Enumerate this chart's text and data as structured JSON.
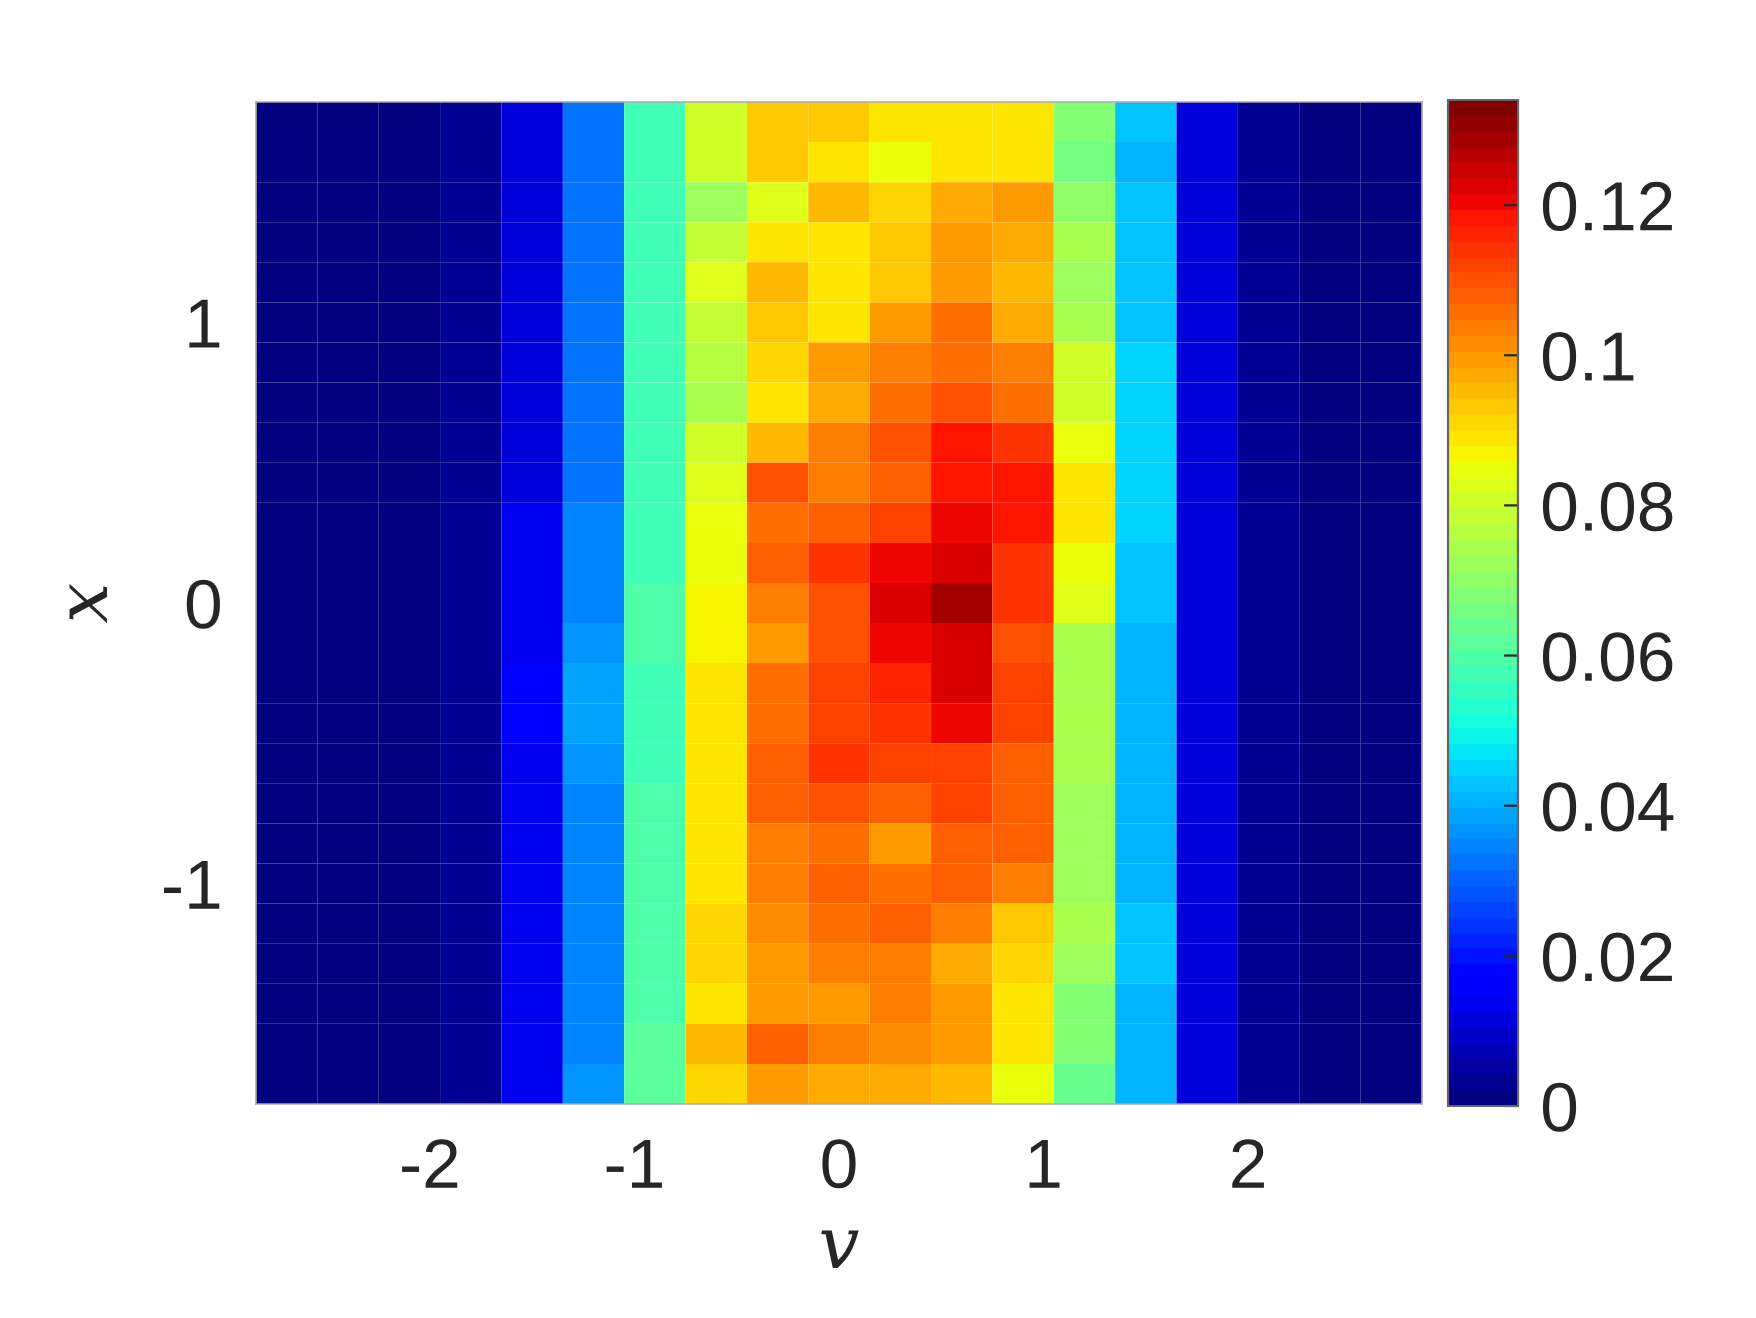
{
  "chart_data": {
    "type": "heatmap",
    "xlabel": "v",
    "ylabel": "x",
    "x": [
      -2.7,
      -2.4,
      -2.1,
      -1.8,
      -1.5,
      -1.2,
      -0.9,
      -0.6,
      -0.3,
      0,
      0.3,
      0.6,
      0.9,
      1.2,
      1.5,
      1.8,
      2.1,
      2.4,
      2.7
    ],
    "y_categories": [
      null,
      null,
      null,
      null,
      null,
      "1",
      null,
      null,
      null,
      null,
      null,
      null,
      "0",
      null,
      null,
      null,
      null,
      null,
      null,
      "-1",
      null,
      null,
      null,
      null,
      null
    ],
    "cells": [
      [
        0,
        0,
        0.001,
        0.004,
        0.012,
        0.032,
        0.057,
        0.08,
        0.093,
        0.093,
        0.088,
        0.09,
        0.09,
        0.068,
        0.042,
        0.012,
        0.003,
        0.001,
        0
      ],
      [
        0,
        0,
        0.001,
        0.004,
        0.012,
        0.032,
        0.057,
        0.08,
        0.093,
        0.088,
        0.085,
        0.09,
        0.088,
        0.065,
        0.04,
        0.012,
        0.003,
        0.001,
        0
      ],
      [
        0,
        0,
        0.001,
        0.004,
        0.012,
        0.032,
        0.057,
        0.072,
        0.083,
        0.095,
        0.092,
        0.097,
        0.1,
        0.07,
        0.042,
        0.012,
        0.003,
        0.001,
        0
      ],
      [
        0,
        0,
        0.001,
        0.004,
        0.012,
        0.032,
        0.057,
        0.078,
        0.09,
        0.088,
        0.093,
        0.1,
        0.098,
        0.075,
        0.042,
        0.012,
        0.003,
        0.001,
        0
      ],
      [
        0,
        0,
        0.001,
        0.004,
        0.012,
        0.032,
        0.057,
        0.082,
        0.095,
        0.088,
        0.093,
        0.1,
        0.095,
        0.072,
        0.042,
        0.012,
        0.003,
        0.001,
        0
      ],
      [
        0,
        0,
        0.001,
        0.004,
        0.012,
        0.032,
        0.057,
        0.078,
        0.093,
        0.09,
        0.1,
        0.105,
        0.098,
        0.075,
        0.042,
        0.012,
        0.003,
        0.001,
        0
      ],
      [
        0,
        0,
        0.001,
        0.004,
        0.012,
        0.033,
        0.057,
        0.077,
        0.092,
        0.1,
        0.103,
        0.105,
        0.103,
        0.08,
        0.044,
        0.012,
        0.003,
        0.001,
        0
      ],
      [
        0,
        0,
        0.001,
        0.004,
        0.012,
        0.033,
        0.057,
        0.075,
        0.088,
        0.098,
        0.105,
        0.11,
        0.105,
        0.08,
        0.044,
        0.012,
        0.003,
        0.001,
        0
      ],
      [
        0,
        0,
        0.001,
        0.004,
        0.012,
        0.033,
        0.058,
        0.08,
        0.095,
        0.103,
        0.11,
        0.118,
        0.115,
        0.085,
        0.044,
        0.012,
        0.003,
        0.001,
        0
      ],
      [
        0,
        0,
        0.001,
        0.004,
        0.012,
        0.033,
        0.058,
        0.083,
        0.11,
        0.103,
        0.108,
        0.118,
        0.118,
        0.088,
        0.044,
        0.012,
        0.003,
        0.001,
        0
      ],
      [
        0,
        0,
        0.001,
        0.004,
        0.013,
        0.034,
        0.058,
        0.085,
        0.105,
        0.107,
        0.112,
        0.12,
        0.118,
        0.088,
        0.044,
        0.012,
        0.003,
        0.001,
        0
      ],
      [
        0,
        0,
        0.001,
        0.004,
        0.013,
        0.035,
        0.058,
        0.084,
        0.108,
        0.115,
        0.12,
        0.123,
        0.115,
        0.085,
        0.043,
        0.012,
        0.003,
        0.001,
        0
      ],
      [
        0,
        0,
        0.001,
        0.004,
        0.013,
        0.035,
        0.06,
        0.086,
        0.103,
        0.11,
        0.122,
        0.128,
        0.115,
        0.082,
        0.042,
        0.012,
        0.003,
        0.001,
        0
      ],
      [
        0,
        0,
        0.001,
        0.004,
        0.014,
        0.036,
        0.06,
        0.086,
        0.1,
        0.11,
        0.12,
        0.122,
        0.11,
        0.075,
        0.04,
        0.012,
        0.003,
        0.001,
        0
      ],
      [
        0,
        0,
        0.001,
        0.004,
        0.015,
        0.038,
        0.058,
        0.09,
        0.105,
        0.113,
        0.117,
        0.122,
        0.113,
        0.075,
        0.04,
        0.012,
        0.003,
        0.001,
        0
      ],
      [
        0,
        0,
        0.001,
        0.004,
        0.015,
        0.038,
        0.057,
        0.088,
        0.106,
        0.113,
        0.115,
        0.12,
        0.113,
        0.075,
        0.04,
        0.012,
        0.003,
        0.001,
        0
      ],
      [
        0,
        0,
        0.001,
        0.004,
        0.014,
        0.036,
        0.058,
        0.09,
        0.108,
        0.115,
        0.112,
        0.113,
        0.108,
        0.075,
        0.04,
        0.012,
        0.003,
        0.001,
        0
      ],
      [
        0,
        0,
        0.001,
        0.004,
        0.013,
        0.035,
        0.059,
        0.09,
        0.107,
        0.11,
        0.107,
        0.112,
        0.107,
        0.072,
        0.04,
        0.012,
        0.003,
        0.001,
        0
      ],
      [
        0,
        0,
        0.001,
        0.004,
        0.013,
        0.034,
        0.059,
        0.09,
        0.103,
        0.105,
        0.1,
        0.108,
        0.108,
        0.072,
        0.04,
        0.012,
        0.003,
        0.001,
        0
      ],
      [
        0,
        0,
        0.001,
        0.004,
        0.013,
        0.034,
        0.059,
        0.09,
        0.103,
        0.107,
        0.105,
        0.107,
        0.103,
        0.073,
        0.041,
        0.012,
        0.003,
        0.001,
        0
      ],
      [
        0,
        0,
        0.001,
        0.004,
        0.013,
        0.034,
        0.06,
        0.092,
        0.102,
        0.105,
        0.107,
        0.103,
        0.094,
        0.074,
        0.043,
        0.012,
        0.003,
        0.001,
        0
      ],
      [
        0,
        0,
        0.001,
        0.004,
        0.013,
        0.034,
        0.06,
        0.092,
        0.1,
        0.104,
        0.104,
        0.098,
        0.092,
        0.072,
        0.042,
        0.012,
        0.003,
        0.001,
        0
      ],
      [
        0,
        0,
        0.001,
        0.004,
        0.013,
        0.035,
        0.06,
        0.09,
        0.1,
        0.1,
        0.103,
        0.1,
        0.09,
        0.068,
        0.041,
        0.012,
        0.003,
        0.001,
        0
      ],
      [
        0,
        0,
        0.001,
        0.004,
        0.013,
        0.035,
        0.062,
        0.095,
        0.108,
        0.103,
        0.102,
        0.1,
        0.09,
        0.068,
        0.04,
        0.012,
        0.003,
        0.001,
        0
      ],
      [
        0,
        0,
        0.001,
        0.004,
        0.013,
        0.036,
        0.062,
        0.092,
        0.099,
        0.098,
        0.097,
        0.095,
        0.085,
        0.063,
        0.04,
        0.012,
        0.003,
        0.001,
        0
      ]
    ],
    "xlim": [
      -2.85,
      2.85
    ],
    "xticks": [
      -2,
      -1,
      0,
      1,
      2
    ],
    "clim": [
      0,
      0.134
    ],
    "cticks": [
      0,
      0.02,
      0.04,
      0.06,
      0.08,
      0.1,
      0.12
    ]
  }
}
